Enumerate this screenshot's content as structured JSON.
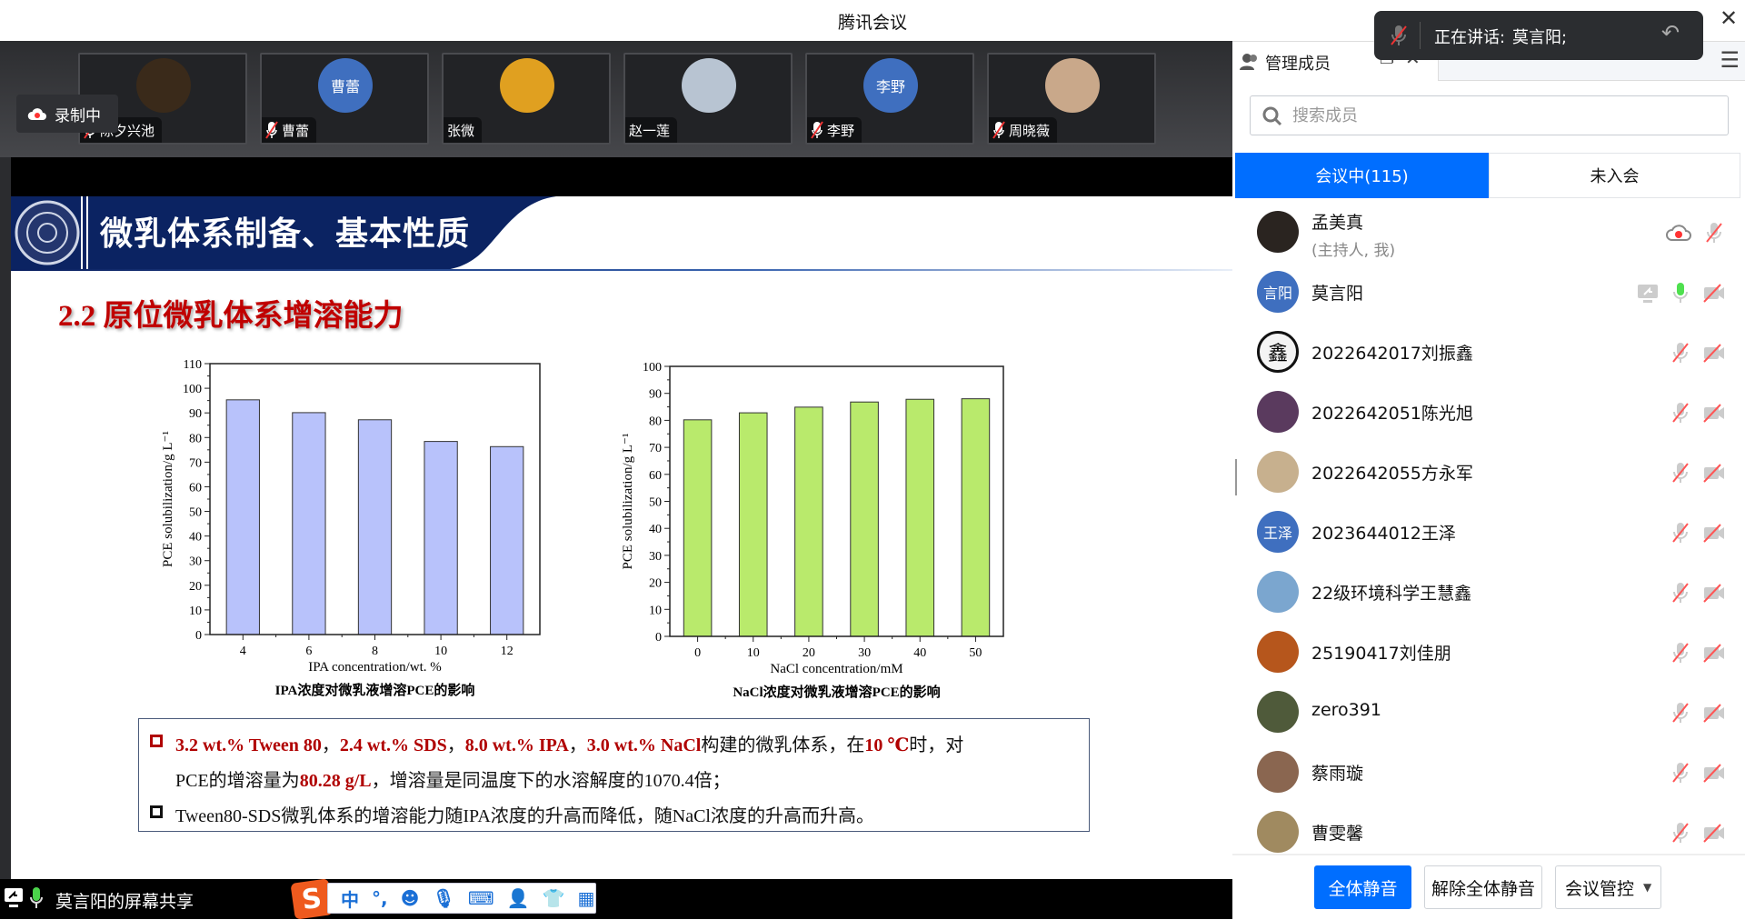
{
  "app": {
    "title": "腾讯会议"
  },
  "recording": {
    "label": "录制中"
  },
  "video_strip": [
    {
      "name": "陈夕兴池",
      "avatar_text": "",
      "avatar_color": "#3a2a1a",
      "muted": true
    },
    {
      "name": "曹蕾",
      "avatar_text": "曹蕾",
      "avatar_color": "#3f6fbf",
      "muted": true
    },
    {
      "name": "张微",
      "avatar_text": "",
      "avatar_color": "#e0a020",
      "muted": false
    },
    {
      "name": "赵一莲",
      "avatar_text": "",
      "avatar_color": "#b8c4d2",
      "muted": false
    },
    {
      "name": "李野",
      "avatar_text": "李野",
      "avatar_color": "#3f6fbf",
      "muted": true
    },
    {
      "name": "周晓薇",
      "avatar_text": "",
      "avatar_color": "#c9a88a",
      "muted": true
    }
  ],
  "slide": {
    "title": "微乳体系制备、基本性质",
    "subtitle": "2.2 原位微乳体系增溶能力",
    "bullets": {
      "b1_parts": [
        "3.2 wt.% Tween 80",
        "，",
        "2.4 wt.% SDS",
        "，",
        "8.0 wt.% IPA",
        "，",
        "3.0 wt.% NaCl",
        "构建的微乳体系，在",
        "10 ℃",
        "时，对"
      ],
      "b1_line2": [
        "PCE的增溶量为",
        "80.28 g/L",
        "，增溶量是同温度下的水溶解度的1070.4倍；"
      ],
      "b2": "Tween80-SDS微乳体系的增溶能力随IPA浓度的升高而降低，随NaCl浓度的升高而升高。"
    }
  },
  "chart_data": [
    {
      "type": "bar",
      "categories": [
        "4",
        "6",
        "8",
        "10",
        "12"
      ],
      "values": [
        95.3,
        90.1,
        87.2,
        78.4,
        76.3
      ],
      "title": "IPA浓度对微乳液增溶PCE的影响",
      "xlabel": "IPA concentration/wt. %",
      "ylabel": "PCE solubilization/g L⁻¹",
      "ylim": [
        0,
        110
      ],
      "ytick_step": 10,
      "bar_color": "#b8c2fb",
      "grid": false
    },
    {
      "type": "bar",
      "categories": [
        "0",
        "10",
        "20",
        "30",
        "40",
        "50"
      ],
      "values": [
        80.2,
        82.8,
        84.9,
        86.8,
        87.8,
        88.0
      ],
      "title": "NaCl浓度对微乳液增溶PCE的影响",
      "xlabel": "NaCl concentration/mM",
      "ylabel": "PCE solubilization/g L⁻¹",
      "ylim": [
        0,
        100
      ],
      "ytick_step": 10,
      "bar_color": "#b9ea6c",
      "grid": false
    }
  ],
  "share": {
    "label": "莫言阳的屏幕共享"
  },
  "ime": {
    "items": [
      "中",
      "°,",
      "☺",
      "mic",
      "keyboard",
      "user",
      "shirt",
      "apps"
    ]
  },
  "toast": {
    "label": "正在讲话:",
    "speaker": "莫言阳;"
  },
  "panel": {
    "title": "管理成员",
    "search_placeholder": "搜索成员",
    "tabs": [
      {
        "label": "会议中(115)",
        "active": true
      },
      {
        "label": "未入会",
        "active": false
      }
    ],
    "members": [
      {
        "name": "孟美真",
        "sub": "(主持人, 我)",
        "avatar_text": "",
        "avatar_color": "#2a2420",
        "icons": [
          "recording-cloud",
          "mic-off"
        ]
      },
      {
        "name": "莫言阳",
        "avatar_text": "言阳",
        "avatar_color": "#3f6fbf",
        "icons": [
          "screen-share",
          "mic-on",
          "camera-off"
        ]
      },
      {
        "name": "2022642017刘振鑫",
        "avatar_text": "鑫",
        "avatar_color": "#f4f4f4",
        "icons": [
          "mic-off",
          "camera-off"
        ]
      },
      {
        "name": "2022642051陈光旭",
        "avatar_text": "",
        "avatar_color": "#5a3a5e",
        "icons": [
          "mic-off",
          "camera-off"
        ]
      },
      {
        "name": "2022642055方永军",
        "avatar_text": "",
        "avatar_color": "#c7b08e",
        "icons": [
          "mic-off",
          "camera-off"
        ]
      },
      {
        "name": "2023644012王泽",
        "avatar_text": "王泽",
        "avatar_color": "#3f6fbf",
        "icons": [
          "mic-off",
          "camera-off"
        ]
      },
      {
        "name": "22级环境科学王慧鑫",
        "avatar_text": "",
        "avatar_color": "#7ba6cf",
        "icons": [
          "mic-off",
          "camera-off"
        ]
      },
      {
        "name": "25190417刘佳朋",
        "avatar_text": "",
        "avatar_color": "#b6561c",
        "icons": [
          "mic-off",
          "camera-off"
        ]
      },
      {
        "name": "zero391",
        "avatar_text": "",
        "avatar_color": "#4f5a3a",
        "icons": [
          "mic-off",
          "camera-off"
        ]
      },
      {
        "name": "蔡雨璇",
        "avatar_text": "",
        "avatar_color": "#8a6650",
        "icons": [
          "mic-off",
          "camera-off"
        ]
      },
      {
        "name": "曹雯馨",
        "avatar_text": "",
        "avatar_color": "#a08a60",
        "icons": [
          "mic-off",
          "camera-off"
        ]
      }
    ],
    "buttons": {
      "mute_all": "全体静音",
      "unmute_all": "解除全体静音",
      "control": "会议管控"
    }
  },
  "colors": {
    "accent": "#006eff",
    "slide_navy": "#0a2060",
    "slide_red": "#c00000"
  }
}
